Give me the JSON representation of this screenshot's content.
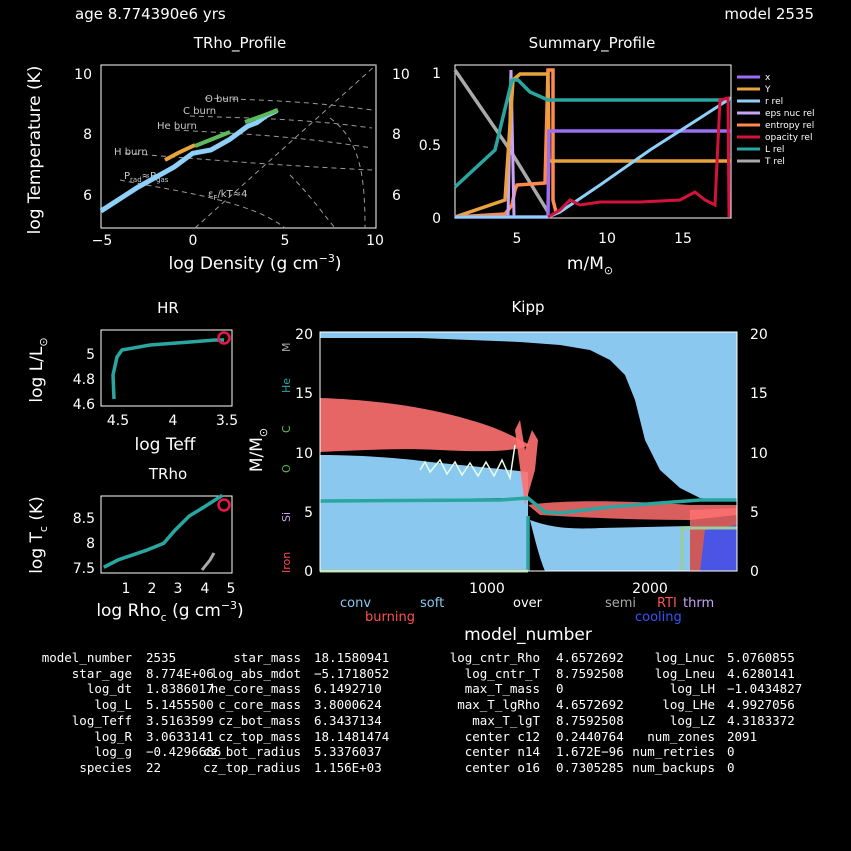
{
  "header": {
    "age": "age 8.774390e6 yrs",
    "model": "model 2535"
  },
  "charts": {
    "trho": {
      "title": "TRho_Profile",
      "xlabel": "log Density (g cm",
      "xlabel_sup": "−3",
      "xlabel_end": ")",
      "ylabel": "log Temperature (K)",
      "xticks": [
        "−5",
        "0",
        "5",
        "10"
      ],
      "yticks": [
        "6",
        "8",
        "10"
      ],
      "annotations": [
        "O burn",
        "C burn",
        "He burn",
        "H burn",
        "P",
        "gas",
        "P",
        "F",
        "rad",
        "ε",
        "F",
        "/kT≈4"
      ]
    },
    "summary": {
      "title": "Summary_Profile",
      "xlabel": "m/M",
      "xlabel_sub": "⊙",
      "xticks": [
        "5",
        "10",
        "15"
      ],
      "yticks": [
        "0",
        "0.5",
        "1"
      ],
      "legend": [
        "x",
        "Y",
        "r rel",
        "eps nuc rel",
        "entropy rel",
        "opacity rel",
        "L rel",
        "T rel"
      ]
    },
    "hr": {
      "title": "HR",
      "xlabel": "log Teff",
      "ylabel": "log L/L",
      "ylabel_sub": "⊙",
      "xticks": [
        "4.5",
        "4",
        "3.5"
      ],
      "yticks": [
        "4.6",
        "4.8",
        "5"
      ]
    },
    "trho_c": {
      "title": "TRho",
      "xlabel": "log Rho",
      "xlabel_sub": "c",
      "xlabel_mid": " (g cm",
      "xlabel_sup": "−3",
      "xlabel_end": ")",
      "ylabel": "log T",
      "ylabel_sub": "c",
      "ylabel_end": " (K)",
      "xticks": [
        "1",
        "2",
        "3",
        "4",
        "5"
      ],
      "yticks": [
        "7.5",
        "8",
        "8.5"
      ]
    },
    "kipp": {
      "title": "Kipp",
      "xlabel": "model_number",
      "ylabel": "M/M",
      "ylabel_sub": "⊙",
      "xticks": [
        "1000",
        "2000"
      ],
      "yticks": [
        "0",
        "5",
        "10",
        "15",
        "20"
      ],
      "side_labels": [
        "M",
        "He",
        "C",
        "O",
        "Si",
        "Iron"
      ],
      "legend": [
        "conv",
        "burning",
        "soft",
        "over",
        "semi",
        "RTI",
        "thrm",
        "cooling"
      ]
    }
  },
  "chart_data": [
    {
      "type": "line",
      "title": "TRho_Profile",
      "xlabel": "log Density (g cm^-3)",
      "ylabel": "log Temperature (K)",
      "xlim": [
        -5,
        10
      ],
      "ylim": [
        5.3,
        10.1
      ],
      "series": [
        {
          "x": [
            -5,
            -3,
            -1,
            0,
            1,
            2,
            3,
            3.5,
            4,
            4.6
          ],
          "y": [
            5.8,
            6.5,
            7.1,
            7.5,
            7.6,
            7.9,
            8.3,
            8.4,
            8.6,
            8.76
          ]
        }
      ]
    },
    {
      "type": "line",
      "title": "Summary_Profile",
      "xlabel": "m/M⊙",
      "xlim": [
        0.2,
        18.2
      ],
      "ylim": [
        0,
        1
      ],
      "series": [
        {
          "name": "x",
          "x": [
            0.2,
            6.3,
            6.3,
            18.2
          ],
          "y": [
            0,
            0,
            0.58,
            0.58
          ]
        },
        {
          "name": "Y",
          "x": [
            0.2,
            3.9,
            4.3,
            6.2,
            6.3,
            18.2
          ],
          "y": [
            0,
            0.95,
            0.98,
            0.98,
            0.39,
            0.39
          ]
        },
        {
          "name": "r rel",
          "x": [
            6.3,
            10,
            14,
            18.1
          ],
          "y": [
            0,
            0.25,
            0.5,
            0.75
          ]
        },
        {
          "name": "T rel",
          "x": [
            0.2,
            6.2
          ],
          "y": [
            1,
            0
          ]
        },
        {
          "name": "L rel",
          "x": [
            0.2,
            4,
            4.3,
            6,
            18.2
          ],
          "y": [
            0.2,
            0.9,
            0.88,
            0.8,
            0.8
          ]
        },
        {
          "name": "opacity rel",
          "x": [
            6.3,
            7,
            10,
            15,
            17.5,
            18.1
          ],
          "y": [
            0,
            0.1,
            0.1,
            0.12,
            0.12,
            0.78
          ]
        }
      ]
    },
    {
      "type": "line",
      "title": "HR",
      "xlabel": "log Teff",
      "ylabel": "log L/L⊙",
      "xlim": [
        4.6,
        3.5
      ],
      "ylim": [
        4.55,
        5.17
      ],
      "series": [
        {
          "x": [
            4.48,
            4.48,
            4.45,
            4.4,
            4.1,
            3.7,
            3.56,
            3.52
          ],
          "y": [
            4.62,
            4.9,
            5.02,
            5.05,
            5.08,
            5.11,
            5.13,
            5.14
          ]
        }
      ]
    },
    {
      "type": "line",
      "title": "TRho",
      "xlabel": "log Rho_c (g cm^-3)",
      "ylabel": "log T_c (K)",
      "xlim": [
        0.4,
        5
      ],
      "ylim": [
        7.4,
        8.75
      ],
      "series": [
        {
          "x": [
            0.5,
            1,
            2,
            2.6,
            3,
            3.5,
            4,
            4.66
          ],
          "y": [
            7.5,
            7.63,
            7.8,
            7.92,
            8.15,
            8.4,
            8.55,
            8.76
          ]
        }
      ]
    },
    {
      "type": "area",
      "title": "Kipp",
      "xlabel": "model_number",
      "ylabel": "M/M⊙",
      "xlim": [
        0,
        2535
      ],
      "ylim": [
        0,
        20
      ]
    }
  ],
  "summary_table": [
    [
      "model_number",
      "2535",
      "star_mass",
      "18.1580941",
      "log_cntr_Rho",
      "4.6572692",
      "log_Lnuc",
      "5.0760855"
    ],
    [
      "star_age",
      "8.774E+06",
      "log_abs_mdot",
      "−5.1718052",
      "log_cntr_T",
      "8.7592508",
      "log_Lneu",
      "4.6280141"
    ],
    [
      "log_dt",
      "1.8386017",
      "he_core_mass",
      "6.1492710",
      "max_T_mass",
      "0",
      "log_LH",
      "−1.0434827"
    ],
    [
      "log_L",
      "5.1455500",
      "c_core_mass",
      "3.8000624",
      "max_T_lgRho",
      "4.6572692",
      "log_LHe",
      "4.9927056"
    ],
    [
      "log_Teff",
      "3.5163599",
      "cz_bot_mass",
      "6.3437134",
      "max_T_lgT",
      "8.7592508",
      "log_LZ",
      "4.3183372"
    ],
    [
      "log_R",
      "3.0633141",
      "cz_top_mass",
      "18.1481474",
      "center c12",
      "0.2440764",
      "num_zones",
      "2091"
    ],
    [
      "log_g",
      "−0.4296686",
      "cz_bot_radius",
      "5.3376037",
      "center n14",
      "1.672E−96",
      "num_retries",
      "0"
    ],
    [
      "species",
      "22",
      "cz_top_radius",
      "1.156E+03",
      "center o16",
      "0.7305285",
      "num_backups",
      "0"
    ]
  ],
  "colors": {
    "x": "#9b6ef3",
    "Y": "#e8a33c",
    "r rel": "#8fd0f8",
    "eps nuc rel": "#c9a4f5",
    "entropy rel": "#ff8a4c",
    "opacity rel": "#d3133c",
    "L rel": "#2aa6a0",
    "T rel": "#a9a9a9",
    "conv": "#8bc8f0",
    "burning": "#ff7070",
    "cooling": "#3355ff"
  }
}
